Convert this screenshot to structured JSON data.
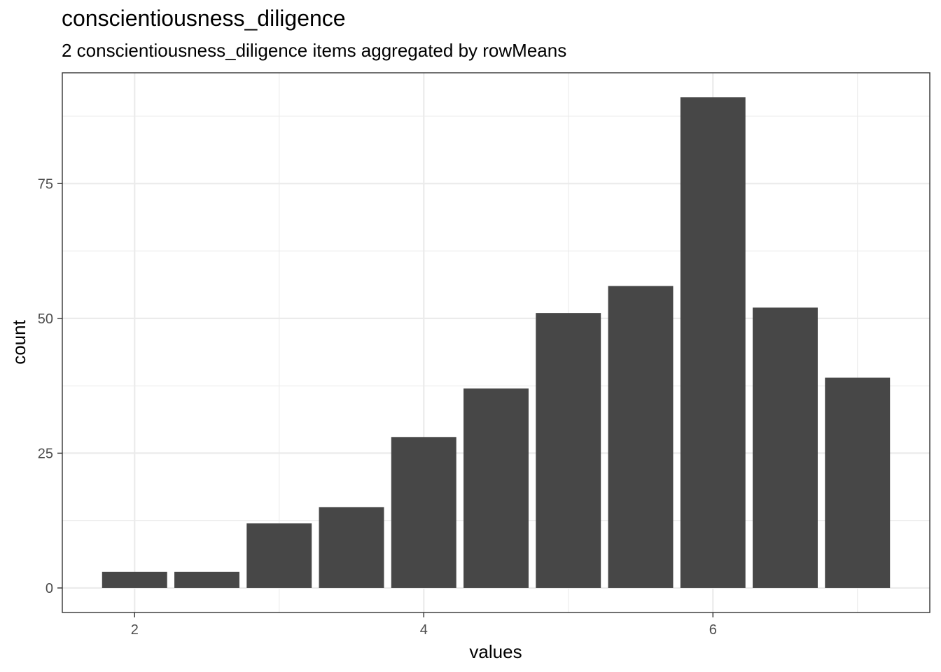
{
  "chart_data": {
    "type": "bar",
    "title": "conscientiousness_diligence",
    "subtitle": "2 conscientiousness_diligence items aggregated by rowMeans",
    "xlabel": "values",
    "ylabel": "count",
    "x": [
      2.0,
      2.5,
      3.0,
      3.5,
      4.0,
      4.5,
      5.0,
      5.5,
      6.0,
      6.5,
      7.0
    ],
    "values": [
      3,
      3,
      12,
      15,
      28,
      37,
      51,
      56,
      91,
      52,
      39
    ],
    "xlim": [
      1.5,
      7.5
    ],
    "ylim": [
      -4.55,
      95.55
    ],
    "x_ticks": [
      2,
      4,
      6
    ],
    "y_ticks": [
      0,
      25,
      50,
      75
    ],
    "bar_color": "#474747",
    "grid": true,
    "legend": "none"
  }
}
